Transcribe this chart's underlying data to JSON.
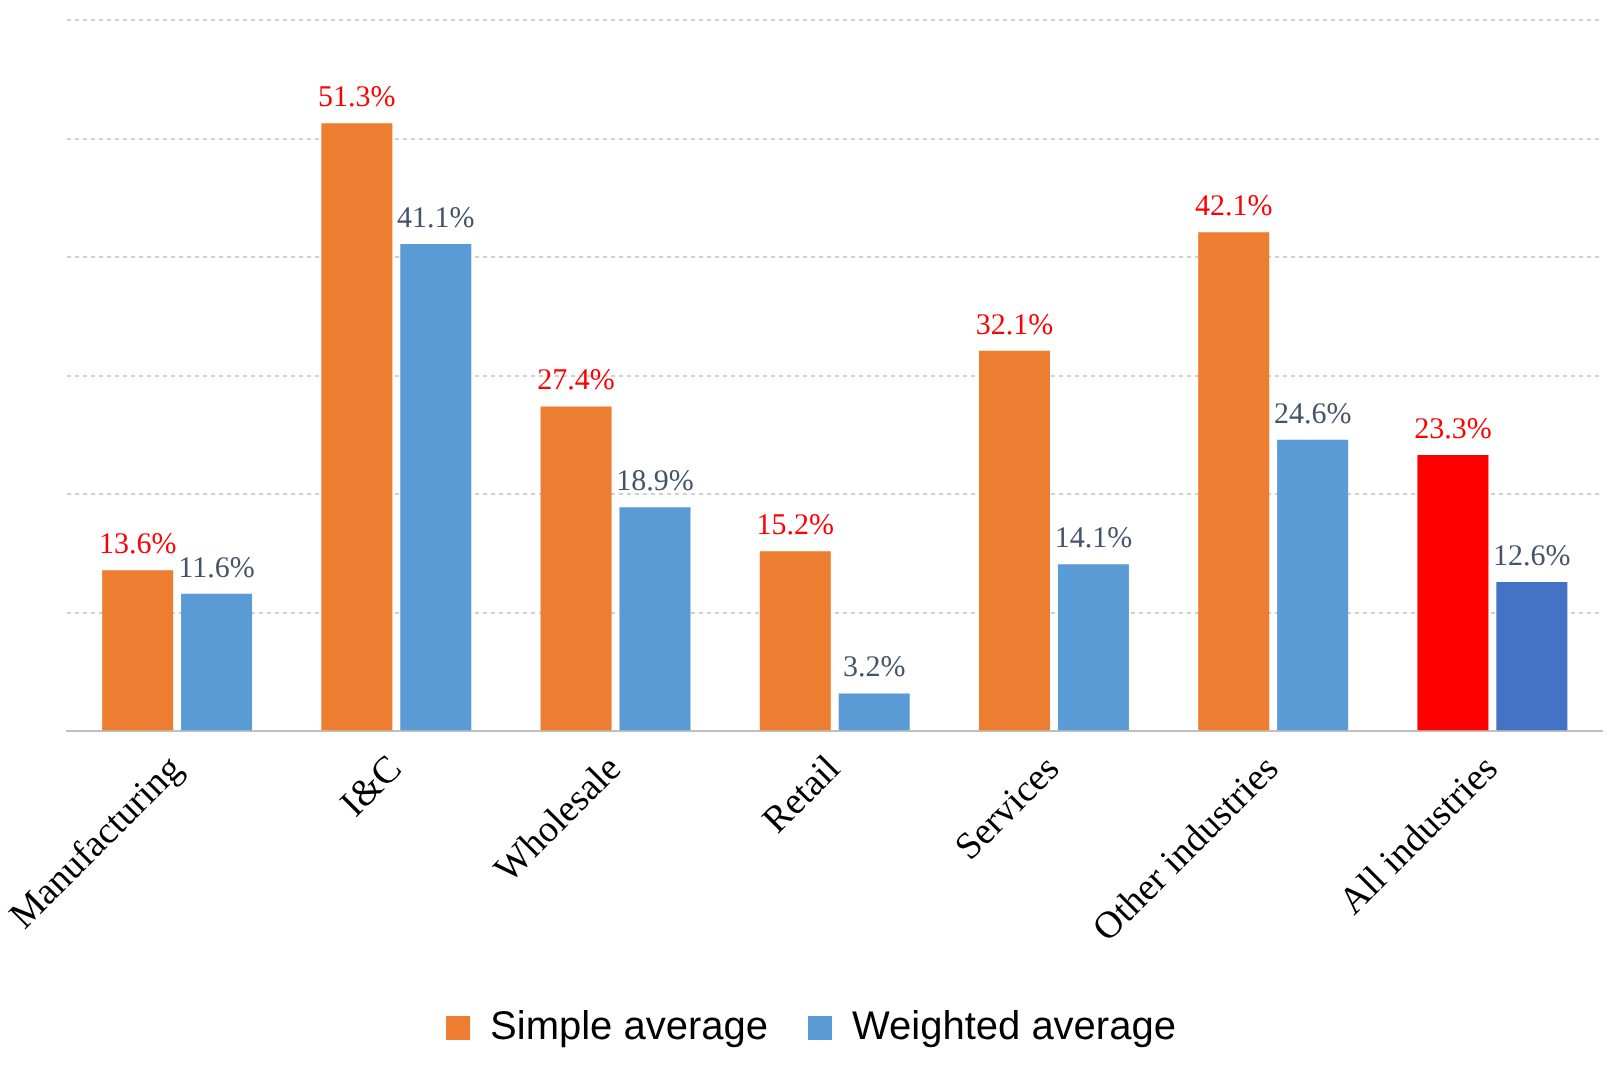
{
  "chart_data": {
    "type": "bar",
    "categories": [
      "Manufacturing",
      "I&C",
      "Wholesale",
      "Retail",
      "Services",
      "Other industries",
      "All industries"
    ],
    "series": [
      {
        "name": "Simple average",
        "color": "#ed7d31",
        "colors": [
          "#ed7d31",
          "#ed7d31",
          "#ed7d31",
          "#ed7d31",
          "#ed7d31",
          "#ed7d31",
          "#ff0000"
        ],
        "values": [
          13.6,
          51.3,
          27.4,
          15.2,
          32.1,
          42.1,
          23.3
        ],
        "value_labels": [
          "13.6%",
          "51.3%",
          "27.4%",
          "15.2%",
          "32.1%",
          "42.1%",
          "23.3%"
        ]
      },
      {
        "name": "Weighted average",
        "color": "#5b9bd5",
        "colors": [
          "#5b9bd5",
          "#5b9bd5",
          "#5b9bd5",
          "#5b9bd5",
          "#5b9bd5",
          "#5b9bd5",
          "#4472c4"
        ],
        "values": [
          11.6,
          41.1,
          18.9,
          3.2,
          14.1,
          24.6,
          12.6
        ],
        "value_labels": [
          "11.6%",
          "41.1%",
          "18.9%",
          "3.2%",
          "14.1%",
          "24.6%",
          "12.6%"
        ]
      }
    ],
    "ylim": [
      0,
      60
    ],
    "yticks": [
      {
        "value": 0,
        "label": null
      },
      {
        "value": 10,
        "label": null
      },
      {
        "value": 20,
        "label": null
      },
      {
        "value": 30,
        "label": null
      },
      {
        "value": 40,
        "label": null
      },
      {
        "value": 50,
        "label": null
      }
    ],
    "grid": "y",
    "legend": "bottom",
    "tick_labels": "x"
  }
}
